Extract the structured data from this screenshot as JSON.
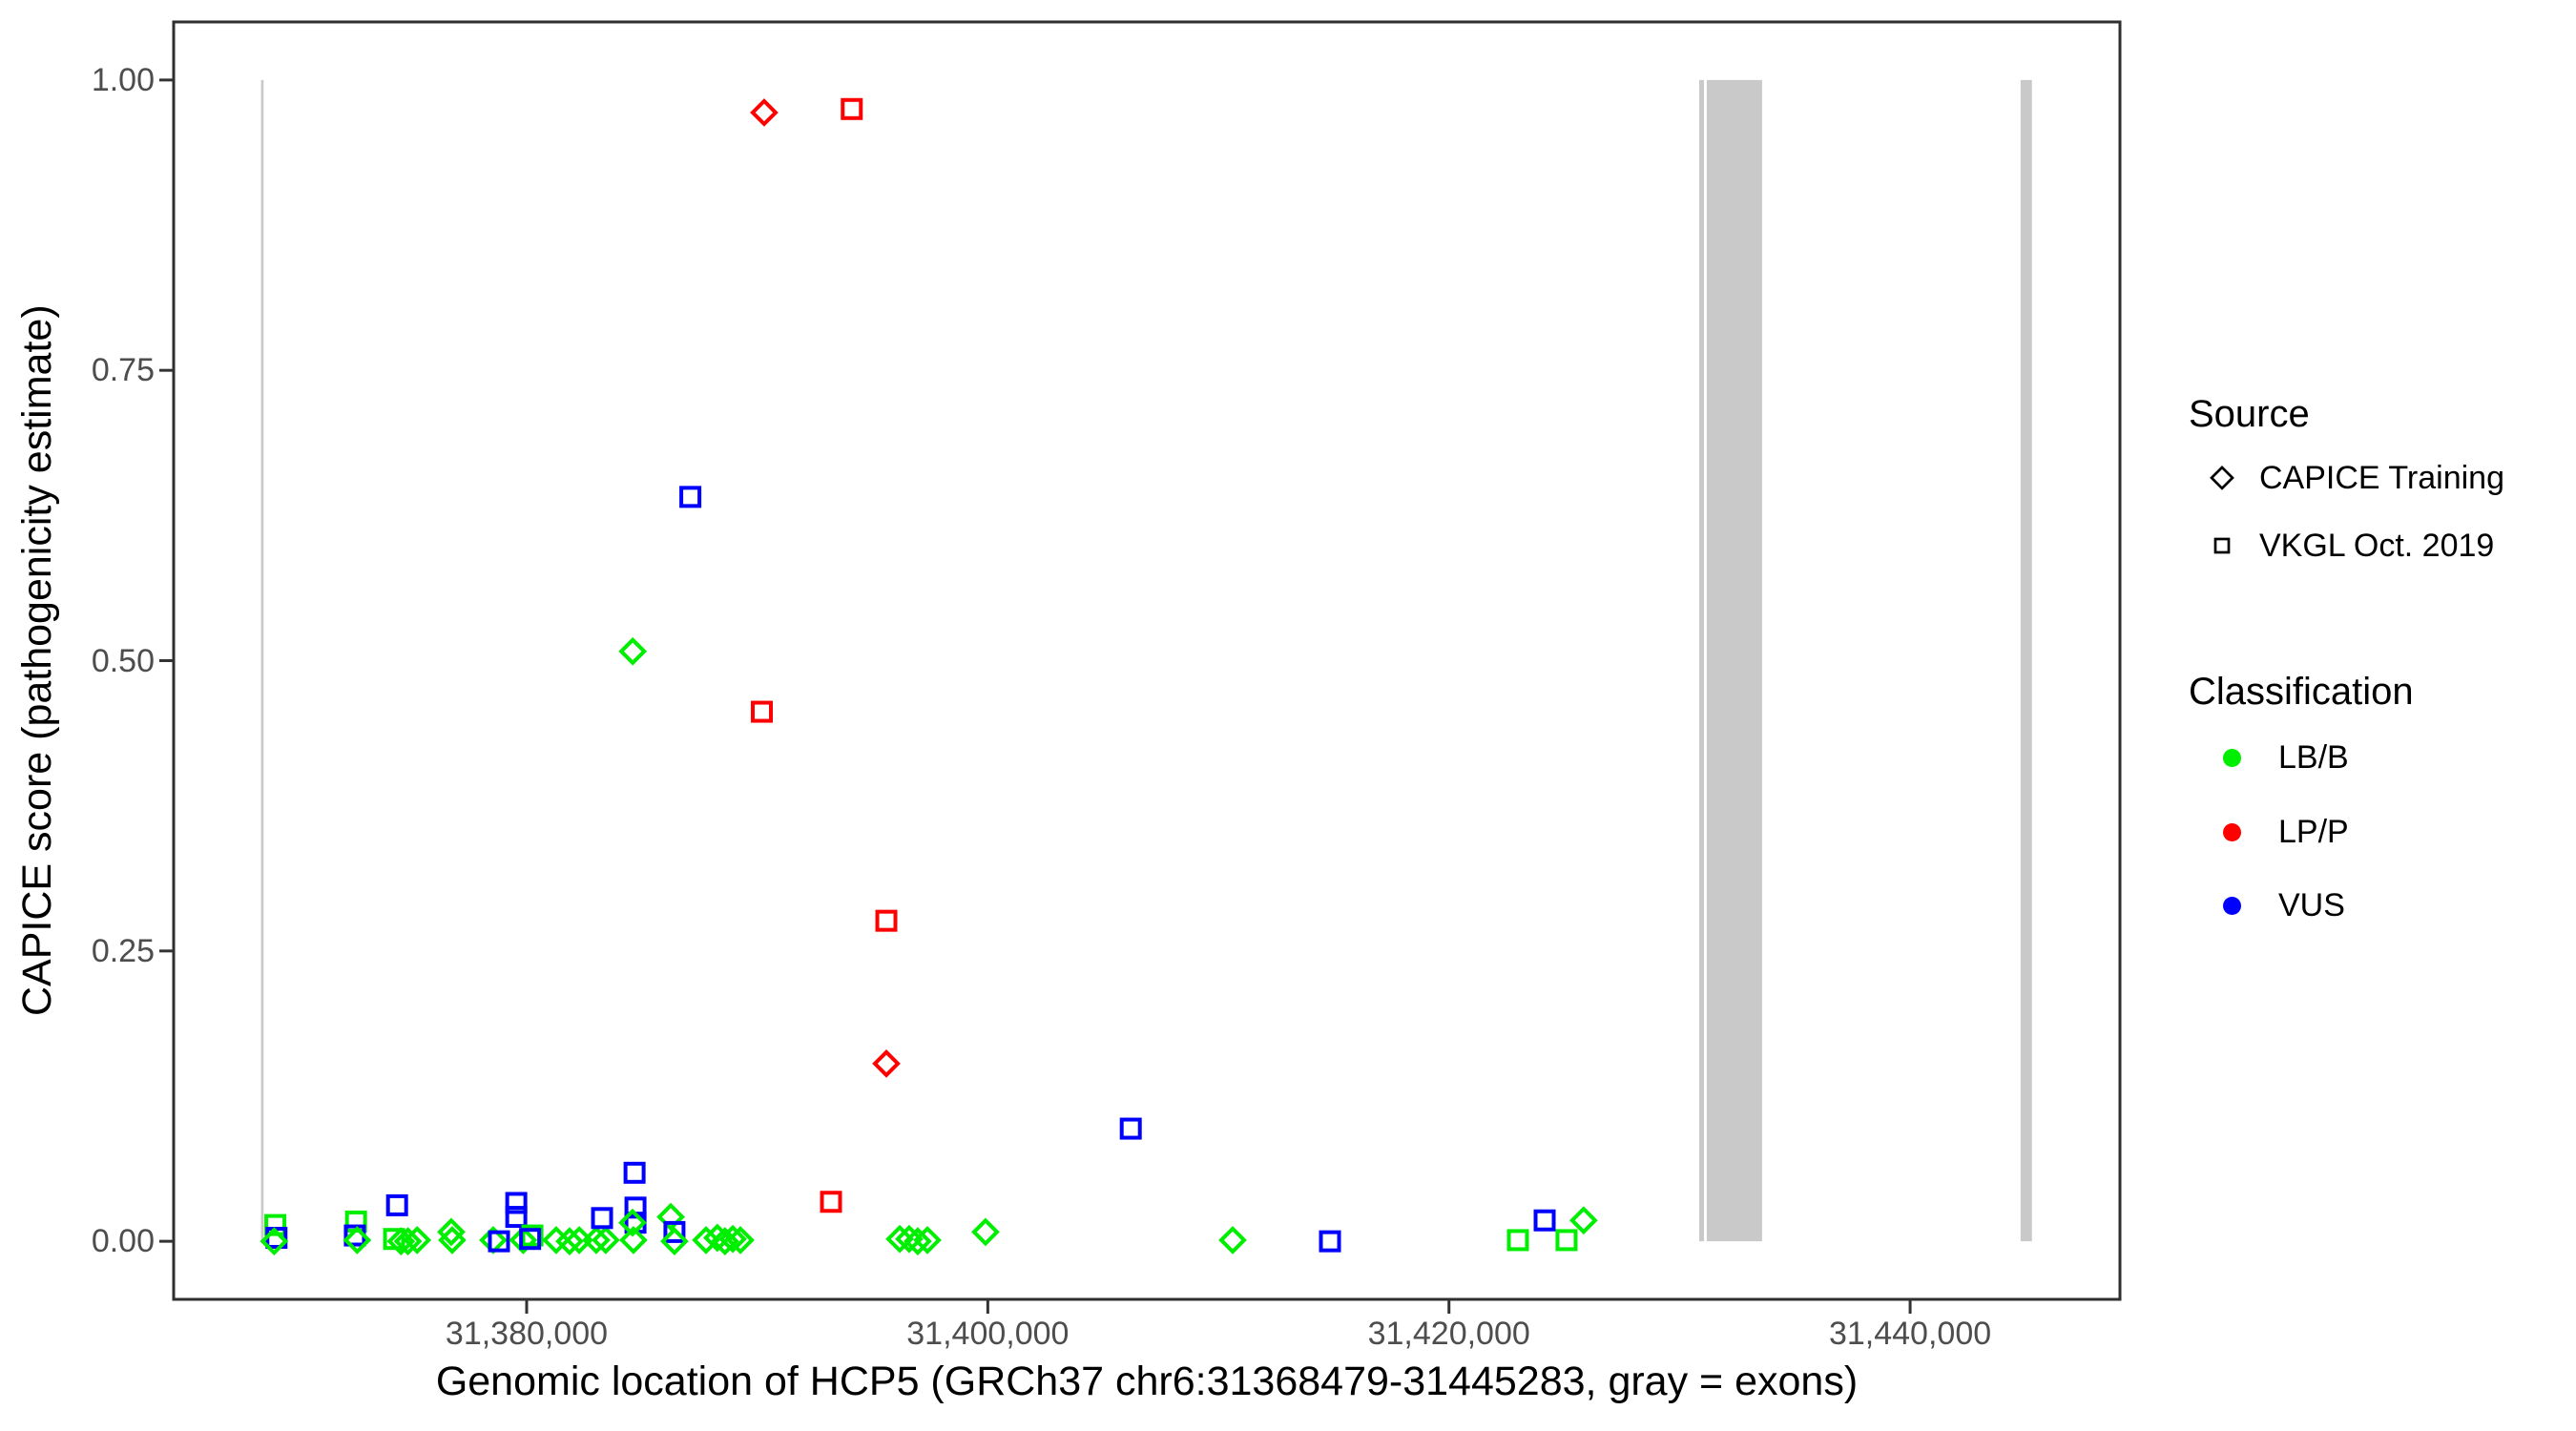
{
  "y_axis": {
    "label": "CAPICE score (pathogenicity estimate)",
    "ticks": [
      "1.00",
      "0.75",
      "0.50",
      "0.25",
      "0.00"
    ],
    "tick_values": [
      1.0,
      0.75,
      0.5,
      0.25,
      0.0
    ],
    "range": [
      -0.05,
      1.05
    ],
    "text_color": "#4d4d4d"
  },
  "x_axis": {
    "label": "Genomic location of HCP5 (GRCh37 chr6:31368479-31445283, gray = exons)",
    "ticks": [
      "31,380,000",
      "31,400,000",
      "31,420,000",
      "31,440,000"
    ],
    "tick_values": [
      31380000,
      31400000,
      31420000,
      31440000
    ],
    "range": [
      31364690,
      31449100
    ],
    "text_color": "#4d4d4d"
  },
  "legend": {
    "source": {
      "title": "Source",
      "items": [
        {
          "label": "CAPICE Training",
          "marker": "diamond"
        },
        {
          "label": "VKGL Oct. 2019",
          "marker": "square"
        }
      ]
    },
    "classification": {
      "title": "Classification",
      "items": [
        {
          "label": "LB/B",
          "color": "#00ee00"
        },
        {
          "label": "LP/P",
          "color": "#ff0000"
        },
        {
          "label": "VUS",
          "color": "#0000ff"
        }
      ]
    }
  },
  "chart_data": {
    "type": "scatter",
    "title": "",
    "xlabel": "Genomic location of HCP5 (GRCh37 chr6:31368479-31445283, gray = exons)",
    "ylabel": "CAPICE score (pathogenicity estimate)",
    "xlim": [
      31364690,
      31449100
    ],
    "ylim": [
      -0.05,
      1.05
    ],
    "grid": false,
    "legend_position": "right",
    "classification_colors": {
      "LB/B": "#00ee00",
      "LP/P": "#ff0000",
      "VUS": "#0000ff"
    },
    "source_markers": {
      "CAPICE Training": "diamond",
      "VKGL Oct. 2019": "square"
    },
    "exon_color": "#c9c9c9",
    "exons": [
      [
        31368479,
        31368590
      ],
      [
        31430850,
        31431060
      ],
      [
        31431180,
        31433580
      ],
      [
        31444790,
        31445283
      ]
    ],
    "points_format": [
      "genomic_position",
      "capice_score",
      "classification",
      "source"
    ],
    "points": [
      [
        31390300,
        0.972,
        "LP/P",
        "CAPICE Training"
      ],
      [
        31394100,
        0.975,
        "LP/P",
        "VKGL Oct. 2019"
      ],
      [
        31387100,
        0.641,
        "VUS",
        "VKGL Oct. 2019"
      ],
      [
        31384600,
        0.508,
        "LB/B",
        "CAPICE Training"
      ],
      [
        31390200,
        0.456,
        "LP/P",
        "VKGL Oct. 2019"
      ],
      [
        31395600,
        0.276,
        "LP/P",
        "VKGL Oct. 2019"
      ],
      [
        31395600,
        0.153,
        "LP/P",
        "CAPICE Training"
      ],
      [
        31406200,
        0.097,
        "VUS",
        "VKGL Oct. 2019"
      ],
      [
        31393200,
        0.034,
        "LP/P",
        "VKGL Oct. 2019"
      ],
      [
        31369100,
        0.014,
        "LB/B",
        "VKGL Oct. 2019"
      ],
      [
        31369150,
        0.003,
        "VUS",
        "VKGL Oct. 2019"
      ],
      [
        31369050,
        0.0,
        "LB/B",
        "CAPICE Training"
      ],
      [
        31372600,
        0.017,
        "LB/B",
        "VKGL Oct. 2019"
      ],
      [
        31372550,
        0.005,
        "VUS",
        "VKGL Oct. 2019"
      ],
      [
        31372650,
        0.001,
        "LB/B",
        "CAPICE Training"
      ],
      [
        31374380,
        0.031,
        "VUS",
        "VKGL Oct. 2019"
      ],
      [
        31374250,
        0.002,
        "LB/B",
        "VKGL Oct. 2019"
      ],
      [
        31374550,
        0.0,
        "LB/B",
        "CAPICE Training"
      ],
      [
        31374850,
        0.0,
        "LB/B",
        "CAPICE Training"
      ],
      [
        31375250,
        0.001,
        "LB/B",
        "CAPICE Training"
      ],
      [
        31376730,
        0.008,
        "LB/B",
        "CAPICE Training"
      ],
      [
        31376770,
        0.001,
        "LB/B",
        "CAPICE Training"
      ],
      [
        31378550,
        0.001,
        "LB/B",
        "CAPICE Training"
      ],
      [
        31378800,
        0.0,
        "VUS",
        "VKGL Oct. 2019"
      ],
      [
        31379550,
        0.033,
        "VUS",
        "VKGL Oct. 2019"
      ],
      [
        31379550,
        0.021,
        "VUS",
        "VKGL Oct. 2019"
      ],
      [
        31379850,
        0.001,
        "LB/B",
        "CAPICE Training"
      ],
      [
        31380250,
        0.005,
        "LB/B",
        "VKGL Oct. 2019"
      ],
      [
        31380150,
        0.002,
        "VUS",
        "VKGL Oct. 2019"
      ],
      [
        31381280,
        0.001,
        "LB/B",
        "CAPICE Training"
      ],
      [
        31381860,
        0.0,
        "LB/B",
        "CAPICE Training"
      ],
      [
        31382280,
        0.001,
        "LB/B",
        "CAPICE Training"
      ],
      [
        31383020,
        0.001,
        "LB/B",
        "CAPICE Training"
      ],
      [
        31383430,
        0.001,
        "LB/B",
        "CAPICE Training"
      ],
      [
        31383270,
        0.02,
        "VUS",
        "VKGL Oct. 2019"
      ],
      [
        31384680,
        0.059,
        "VUS",
        "VKGL Oct. 2019"
      ],
      [
        31384720,
        0.029,
        "VUS",
        "VKGL Oct. 2019"
      ],
      [
        31384720,
        0.016,
        "VUS",
        "VKGL Oct. 2019"
      ],
      [
        31384590,
        0.016,
        "LB/B",
        "CAPICE Training"
      ],
      [
        31384630,
        0.001,
        "LB/B",
        "CAPICE Training"
      ],
      [
        31386250,
        0.021,
        "LB/B",
        "CAPICE Training"
      ],
      [
        31386410,
        0.008,
        "VUS",
        "VKGL Oct. 2019"
      ],
      [
        31386410,
        0.0,
        "LB/B",
        "CAPICE Training"
      ],
      [
        31387780,
        0.001,
        "LB/B",
        "CAPICE Training"
      ],
      [
        31388270,
        0.003,
        "LB/B",
        "CAPICE Training"
      ],
      [
        31388600,
        0.0,
        "LB/B",
        "CAPICE Training"
      ],
      [
        31388940,
        0.002,
        "LB/B",
        "CAPICE Training"
      ],
      [
        31389270,
        0.001,
        "LB/B",
        "CAPICE Training"
      ],
      [
        31396180,
        0.002,
        "LB/B",
        "CAPICE Training"
      ],
      [
        31396590,
        0.002,
        "LB/B",
        "CAPICE Training"
      ],
      [
        31396960,
        0.0,
        "LB/B",
        "CAPICE Training"
      ],
      [
        31397380,
        0.001,
        "LB/B",
        "CAPICE Training"
      ],
      [
        31399900,
        0.008,
        "LB/B",
        "CAPICE Training"
      ],
      [
        31410620,
        0.001,
        "LB/B",
        "CAPICE Training"
      ],
      [
        31414840,
        0.0,
        "VUS",
        "VKGL Oct. 2019"
      ],
      [
        31422990,
        0.001,
        "LB/B",
        "VKGL Oct. 2019"
      ],
      [
        31424150,
        0.018,
        "VUS",
        "VKGL Oct. 2019"
      ],
      [
        31425100,
        0.001,
        "LB/B",
        "VKGL Oct. 2019"
      ],
      [
        31425840,
        0.018,
        "LB/B",
        "CAPICE Training"
      ]
    ]
  }
}
